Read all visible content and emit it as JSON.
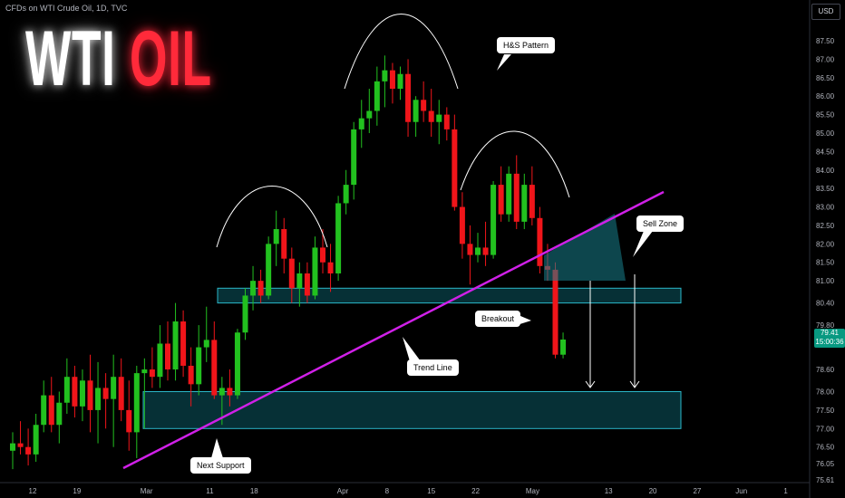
{
  "header": {
    "source": "CFDs on WTI Crude Oil, 1D, TVC",
    "currency": "USD"
  },
  "title": {
    "part1": "WTI",
    "part2": "OIL"
  },
  "price_tag": {
    "price": "79.41",
    "countdown": "15:00:36"
  },
  "annotations": {
    "hs_pattern": "H&S Pattern",
    "sell_zone": "Sell Zone",
    "breakout": "Breakout",
    "trend_line": "Trend Line",
    "next_support": "Next Support"
  },
  "colors": {
    "up": "#22c11f",
    "down": "#f0151a",
    "trend": "#d020e8",
    "zone": "#0e6b77",
    "background": "#000000"
  },
  "chart_data": {
    "type": "candlestick",
    "title": "CFDs on WTI Crude Oil, 1D, TVC",
    "y_ticks": [
      87.5,
      87.0,
      86.5,
      86.0,
      85.5,
      85.0,
      84.5,
      84.0,
      83.5,
      83.0,
      82.5,
      82.0,
      81.5,
      81.0,
      80.4,
      79.8,
      78.6,
      78.0,
      77.5,
      77.0,
      76.5,
      76.05,
      75.61
    ],
    "x_ticks": [
      {
        "label": "12",
        "date": "2024-02-12"
      },
      {
        "label": "19",
        "date": "2024-02-19"
      },
      {
        "label": "Mar",
        "date": "2024-03-01"
      },
      {
        "label": "11",
        "date": "2024-03-11"
      },
      {
        "label": "18",
        "date": "2024-03-18"
      },
      {
        "label": "Apr",
        "date": "2024-04-01"
      },
      {
        "label": "8",
        "date": "2024-04-08"
      },
      {
        "label": "15",
        "date": "2024-04-15"
      },
      {
        "label": "22",
        "date": "2024-04-22"
      },
      {
        "label": "May",
        "date": "2024-05-01"
      },
      {
        "label": "13",
        "date": "2024-05-13"
      },
      {
        "label": "20",
        "date": "2024-05-20"
      },
      {
        "label": "27",
        "date": "2024-05-27"
      },
      {
        "label": "Jun",
        "date": "2024-06-03"
      },
      {
        "label": "1",
        "date": "2024-06-10"
      }
    ],
    "ylim": [
      75.4,
      88.2
    ],
    "candles": [
      {
        "o": 76.4,
        "h": 76.9,
        "l": 75.9,
        "c": 76.6
      },
      {
        "o": 76.6,
        "h": 77.2,
        "l": 76.3,
        "c": 76.5
      },
      {
        "o": 76.5,
        "h": 77.0,
        "l": 76.0,
        "c": 76.3
      },
      {
        "o": 76.3,
        "h": 77.4,
        "l": 76.1,
        "c": 77.1
      },
      {
        "o": 77.1,
        "h": 78.3,
        "l": 76.9,
        "c": 77.9
      },
      {
        "o": 77.9,
        "h": 78.4,
        "l": 76.9,
        "c": 77.1
      },
      {
        "o": 77.1,
        "h": 78.0,
        "l": 76.6,
        "c": 77.7
      },
      {
        "o": 77.7,
        "h": 78.9,
        "l": 77.4,
        "c": 78.4
      },
      {
        "o": 78.4,
        "h": 78.7,
        "l": 77.3,
        "c": 77.6
      },
      {
        "o": 77.6,
        "h": 78.6,
        "l": 77.2,
        "c": 78.3
      },
      {
        "o": 78.3,
        "h": 79.0,
        "l": 76.9,
        "c": 77.5
      },
      {
        "o": 77.5,
        "h": 78.8,
        "l": 76.6,
        "c": 78.1
      },
      {
        "o": 78.1,
        "h": 78.5,
        "l": 77.0,
        "c": 77.8
      },
      {
        "o": 77.8,
        "h": 79.0,
        "l": 76.5,
        "c": 78.4
      },
      {
        "o": 78.4,
        "h": 78.9,
        "l": 77.2,
        "c": 77.5
      },
      {
        "o": 77.5,
        "h": 78.3,
        "l": 76.4,
        "c": 76.9
      },
      {
        "o": 76.9,
        "h": 78.7,
        "l": 76.2,
        "c": 78.5
      },
      {
        "o": 78.5,
        "h": 78.9,
        "l": 77.0,
        "c": 78.6
      },
      {
        "o": 78.6,
        "h": 79.2,
        "l": 78.1,
        "c": 78.4
      },
      {
        "o": 78.4,
        "h": 79.8,
        "l": 78.1,
        "c": 79.3
      },
      {
        "o": 79.3,
        "h": 79.9,
        "l": 78.3,
        "c": 78.6
      },
      {
        "o": 78.6,
        "h": 80.4,
        "l": 78.3,
        "c": 79.9
      },
      {
        "o": 79.9,
        "h": 80.2,
        "l": 78.4,
        "c": 78.7
      },
      {
        "o": 78.7,
        "h": 79.2,
        "l": 77.6,
        "c": 78.2
      },
      {
        "o": 78.2,
        "h": 79.8,
        "l": 77.9,
        "c": 79.2
      },
      {
        "o": 79.2,
        "h": 80.3,
        "l": 78.8,
        "c": 79.4
      },
      {
        "o": 79.4,
        "h": 79.9,
        "l": 77.8,
        "c": 77.9
      },
      {
        "o": 77.9,
        "h": 78.4,
        "l": 77.1,
        "c": 78.1
      },
      {
        "o": 78.1,
        "h": 78.6,
        "l": 77.6,
        "c": 77.9
      },
      {
        "o": 77.9,
        "h": 79.7,
        "l": 77.8,
        "c": 79.6
      },
      {
        "o": 79.6,
        "h": 80.8,
        "l": 79.4,
        "c": 80.6
      },
      {
        "o": 80.6,
        "h": 81.4,
        "l": 80.2,
        "c": 81.0
      },
      {
        "o": 81.0,
        "h": 81.3,
        "l": 80.4,
        "c": 80.6
      },
      {
        "o": 80.6,
        "h": 82.2,
        "l": 80.5,
        "c": 82.0
      },
      {
        "o": 82.0,
        "h": 82.9,
        "l": 81.4,
        "c": 82.4
      },
      {
        "o": 82.4,
        "h": 82.7,
        "l": 81.2,
        "c": 81.6
      },
      {
        "o": 81.6,
        "h": 81.9,
        "l": 80.4,
        "c": 80.8
      },
      {
        "o": 80.8,
        "h": 81.5,
        "l": 80.3,
        "c": 81.2
      },
      {
        "o": 81.2,
        "h": 81.5,
        "l": 80.4,
        "c": 80.6
      },
      {
        "o": 80.6,
        "h": 82.2,
        "l": 80.5,
        "c": 81.9
      },
      {
        "o": 81.9,
        "h": 82.4,
        "l": 81.2,
        "c": 81.5
      },
      {
        "o": 81.5,
        "h": 82.0,
        "l": 80.7,
        "c": 81.2
      },
      {
        "o": 81.2,
        "h": 83.3,
        "l": 81.0,
        "c": 83.1
      },
      {
        "o": 83.1,
        "h": 84.0,
        "l": 82.8,
        "c": 83.6
      },
      {
        "o": 83.6,
        "h": 85.3,
        "l": 83.2,
        "c": 85.1
      },
      {
        "o": 85.1,
        "h": 85.9,
        "l": 84.6,
        "c": 85.4
      },
      {
        "o": 85.4,
        "h": 86.2,
        "l": 85.0,
        "c": 85.6
      },
      {
        "o": 85.6,
        "h": 86.8,
        "l": 85.2,
        "c": 86.4
      },
      {
        "o": 86.4,
        "h": 87.1,
        "l": 85.7,
        "c": 86.7
      },
      {
        "o": 86.7,
        "h": 86.9,
        "l": 85.8,
        "c": 86.2
      },
      {
        "o": 86.2,
        "h": 86.8,
        "l": 85.9,
        "c": 86.6
      },
      {
        "o": 86.6,
        "h": 87.0,
        "l": 84.9,
        "c": 85.3
      },
      {
        "o": 85.3,
        "h": 86.0,
        "l": 84.9,
        "c": 85.9
      },
      {
        "o": 85.9,
        "h": 86.4,
        "l": 85.3,
        "c": 85.6
      },
      {
        "o": 85.6,
        "h": 86.2,
        "l": 84.9,
        "c": 85.3
      },
      {
        "o": 85.3,
        "h": 85.9,
        "l": 84.7,
        "c": 85.5
      },
      {
        "o": 85.5,
        "h": 85.7,
        "l": 84.8,
        "c": 85.1
      },
      {
        "o": 85.1,
        "h": 85.5,
        "l": 82.9,
        "c": 83.0
      },
      {
        "o": 83.0,
        "h": 83.4,
        "l": 81.6,
        "c": 82.0
      },
      {
        "o": 82.0,
        "h": 82.5,
        "l": 80.9,
        "c": 81.7
      },
      {
        "o": 81.7,
        "h": 82.3,
        "l": 81.5,
        "c": 81.9
      },
      {
        "o": 81.9,
        "h": 82.6,
        "l": 81.4,
        "c": 81.7
      },
      {
        "o": 81.7,
        "h": 83.7,
        "l": 81.6,
        "c": 83.6
      },
      {
        "o": 83.6,
        "h": 84.1,
        "l": 82.6,
        "c": 82.8
      },
      {
        "o": 82.8,
        "h": 84.1,
        "l": 82.6,
        "c": 83.9
      },
      {
        "o": 83.9,
        "h": 84.4,
        "l": 82.4,
        "c": 82.6
      },
      {
        "o": 82.6,
        "h": 83.9,
        "l": 82.4,
        "c": 83.6
      },
      {
        "o": 83.6,
        "h": 84.1,
        "l": 82.5,
        "c": 82.7
      },
      {
        "o": 82.7,
        "h": 83.0,
        "l": 81.2,
        "c": 81.4
      },
      {
        "o": 81.4,
        "h": 82.0,
        "l": 81.0,
        "c": 81.3
      },
      {
        "o": 81.3,
        "h": 81.5,
        "l": 78.9,
        "c": 79.0
      },
      {
        "o": 79.0,
        "h": 79.6,
        "l": 78.9,
        "c": 79.41
      }
    ]
  }
}
